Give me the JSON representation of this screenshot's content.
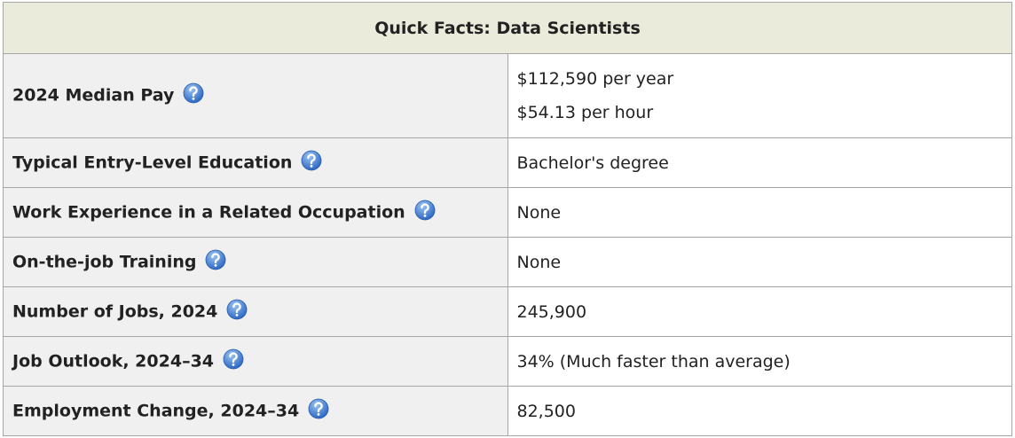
{
  "table": {
    "title": "Quick Facts: Data Scientists",
    "rows": [
      {
        "label": "2024 Median Pay",
        "values": [
          "$112,590 per year",
          "$54.13 per hour"
        ]
      },
      {
        "label": "Typical Entry-Level Education",
        "values": [
          "Bachelor's degree"
        ]
      },
      {
        "label": "Work Experience in a Related Occupation",
        "values": [
          "None"
        ]
      },
      {
        "label": "On-the-job Training",
        "values": [
          "None"
        ]
      },
      {
        "label": "Number of Jobs, 2024",
        "values": [
          "245,900"
        ]
      },
      {
        "label": "Job Outlook, 2024–34",
        "values": [
          "34% (Much faster than average)"
        ]
      },
      {
        "label": "Employment Change, 2024–34",
        "values": [
          "82,500"
        ]
      }
    ]
  }
}
